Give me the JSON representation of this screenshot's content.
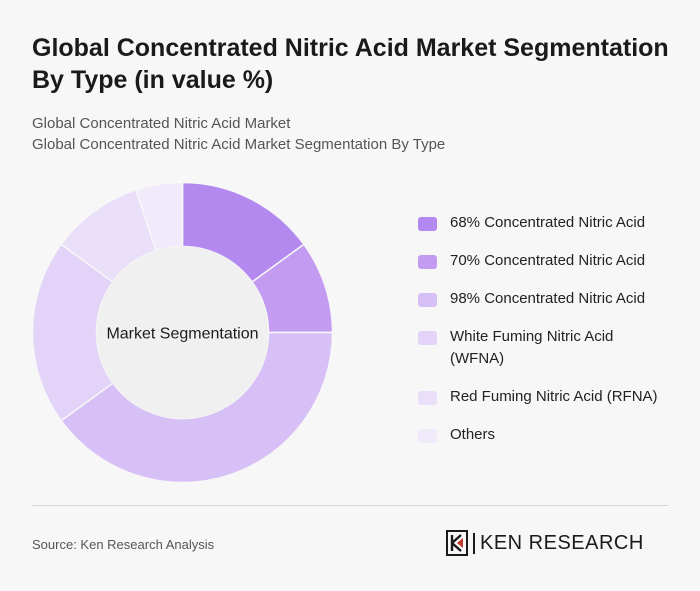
{
  "header": {
    "title": "Global Concentrated Nitric Acid Market Segmentation By Type (in value %)",
    "subtitle_line1": "Global Concentrated Nitric Acid Market",
    "subtitle_line2": "Global Concentrated Nitric Acid Market Segmentation By Type"
  },
  "chart_data": {
    "type": "pie",
    "variant": "donut",
    "center_label": "Market Segmentation",
    "legend_position": "right",
    "categories": [
      "68% Concentrated Nitric Acid",
      "70% Concentrated Nitric Acid",
      "98% Concentrated Nitric Acid",
      "White Fuming Nitric Acid (WFNA)",
      "Red Fuming Nitric Acid (RFNA)",
      "Others"
    ],
    "values": [
      15,
      10,
      40,
      20,
      10,
      5
    ],
    "colors": [
      "#b388ef",
      "#c39bf0",
      "#d7c0f6",
      "#e3d3f8",
      "#eadff9",
      "#f1eafb"
    ]
  },
  "legend_line1": [
    "68% Concentrated Nitric Acid",
    "70% Concentrated Nitric Acid",
    "98% Concentrated Nitric Acid",
    "White Fuming Nitric Acid",
    "Red Fuming Nitric Acid (RFNA)",
    "Others"
  ],
  "legend_line2": [
    "",
    "",
    "",
    "(WFNA)",
    "",
    ""
  ],
  "footer": {
    "source": "Source: Ken Research Analysis",
    "logo_text": "KEN RESEARCH"
  }
}
